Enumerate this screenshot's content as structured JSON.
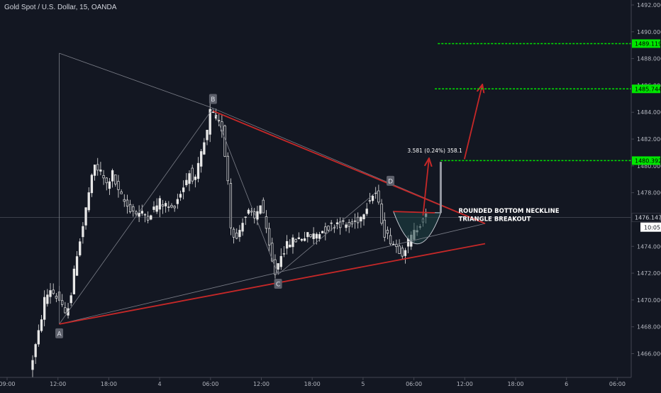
{
  "chart_data": {
    "type": "candlestick",
    "title": "Gold Spot / U.S. Dollar, 15, OANDA",
    "xlabel": "",
    "ylabel": "",
    "ylim": [
      1464.7,
      1492.4
    ],
    "grid": false,
    "colors": {
      "background": "#131722",
      "candle": "#e8e8e8",
      "axis_text": "#b2b5be",
      "axis_line": "#434651",
      "red_line": "#c62828",
      "grey_line": "#7b7e88",
      "target_line": "#00e600",
      "label_box": "#5d606b",
      "cup_fill": "#1e4445"
    },
    "x_ticks": [
      "09:00",
      "12:00",
      "18:00",
      "4",
      "06:00",
      "12:00",
      "18:00",
      "5",
      "06:00",
      "12:00",
      "18:00",
      "6",
      "06:00"
    ],
    "y_ticks": [
      "1466.000",
      "1468.000",
      "1470.000",
      "1472.000",
      "1474.000",
      "1476.000",
      "1478.000",
      "1480.000",
      "1482.000",
      "1484.000",
      "1486.000",
      "1488.000",
      "1490.000",
      "1492.000"
    ],
    "last_price": {
      "value": "1476.147",
      "countdown": "10:05"
    },
    "price_path": [
      {
        "x": 0,
        "y": 1464.7
      },
      {
        "x": 3,
        "y": 1467.5
      },
      {
        "x": 5,
        "y": 1470.0
      },
      {
        "x": 7,
        "y": 1470.8
      },
      {
        "x": 10,
        "y": 1470.0
      },
      {
        "x": 12,
        "y": 1468.8
      },
      {
        "x": 14,
        "y": 1470.5
      },
      {
        "x": 16,
        "y": 1473.5
      },
      {
        "x": 18,
        "y": 1475.5
      },
      {
        "x": 20,
        "y": 1478.0
      },
      {
        "x": 22,
        "y": 1480.0
      },
      {
        "x": 24,
        "y": 1479.5
      },
      {
        "x": 26,
        "y": 1478.6
      },
      {
        "x": 28,
        "y": 1479.4
      },
      {
        "x": 30,
        "y": 1478.0
      },
      {
        "x": 33,
        "y": 1477.0
      },
      {
        "x": 36,
        "y": 1476.5
      },
      {
        "x": 40,
        "y": 1476.3
      },
      {
        "x": 44,
        "y": 1477.3
      },
      {
        "x": 48,
        "y": 1476.8
      },
      {
        "x": 51,
        "y": 1478.0
      },
      {
        "x": 54,
        "y": 1479.5
      },
      {
        "x": 56,
        "y": 1478.9
      },
      {
        "x": 58,
        "y": 1480.8
      },
      {
        "x": 60,
        "y": 1482.5
      },
      {
        "x": 61,
        "y": 1484.0
      },
      {
        "x": 63,
        "y": 1483.5
      },
      {
        "x": 65,
        "y": 1482.8
      },
      {
        "x": 67,
        "y": 1479.0
      },
      {
        "x": 68,
        "y": 1475.5
      },
      {
        "x": 70,
        "y": 1474.5
      },
      {
        "x": 72,
        "y": 1476.0
      },
      {
        "x": 74,
        "y": 1476.5
      },
      {
        "x": 76,
        "y": 1476.0
      },
      {
        "x": 78,
        "y": 1477.2
      },
      {
        "x": 79,
        "y": 1476.5
      },
      {
        "x": 80,
        "y": 1475.0
      },
      {
        "x": 82,
        "y": 1472.8
      },
      {
        "x": 83,
        "y": 1472.0
      },
      {
        "x": 85,
        "y": 1473.5
      },
      {
        "x": 88,
        "y": 1474.3
      },
      {
        "x": 92,
        "y": 1474.7
      },
      {
        "x": 96,
        "y": 1474.8
      },
      {
        "x": 100,
        "y": 1475.3
      },
      {
        "x": 104,
        "y": 1475.8
      },
      {
        "x": 108,
        "y": 1475.5
      },
      {
        "x": 112,
        "y": 1476.2
      },
      {
        "x": 115,
        "y": 1477.6
      },
      {
        "x": 117,
        "y": 1478.0
      },
      {
        "x": 118,
        "y": 1477.0
      },
      {
        "x": 120,
        "y": 1475.0
      },
      {
        "x": 122,
        "y": 1474.5
      },
      {
        "x": 124,
        "y": 1474.0
      },
      {
        "x": 126,
        "y": 1473.6
      },
      {
        "x": 128,
        "y": 1474.3
      },
      {
        "x": 130,
        "y": 1475.0
      },
      {
        "x": 132,
        "y": 1475.8
      },
      {
        "x": 134,
        "y": 1476.2
      }
    ],
    "candle_count": 134,
    "annotations": [
      {
        "type": "trendline",
        "color": "grey",
        "from": {
          "x": 9,
          "y": 1488.4
        },
        "to": {
          "x": 61,
          "y": 1484.3
        }
      },
      {
        "type": "trendline",
        "color": "grey",
        "from": {
          "x": 9,
          "y": 1488.4
        },
        "to": {
          "x": 9,
          "y": 1468.2
        }
      },
      {
        "type": "trendline",
        "color": "grey",
        "from": {
          "x": 9,
          "y": 1468.2
        },
        "to": {
          "x": 61,
          "y": 1484.3
        }
      },
      {
        "type": "trendline",
        "color": "grey",
        "from": {
          "x": 61,
          "y": 1484.3
        },
        "to": {
          "x": 83,
          "y": 1471.9
        }
      },
      {
        "type": "trendline",
        "color": "grey",
        "from": {
          "x": 83,
          "y": 1471.9
        },
        "to": {
          "x": 117,
          "y": 1478.2
        }
      },
      {
        "type": "trendline",
        "color": "grey",
        "from": {
          "x": 9,
          "y": 1468.2
        },
        "to": {
          "x": 153,
          "y": 1475.7
        }
      },
      {
        "type": "trendline",
        "color": "grey",
        "from": {
          "x": 61,
          "y": 1484.3
        },
        "to": {
          "x": 153,
          "y": 1475.7
        }
      },
      {
        "type": "trendline",
        "color": "red",
        "from": {
          "x": 61,
          "y": 1484.1
        },
        "to": {
          "x": 153,
          "y": 1475.7
        }
      },
      {
        "type": "trendline",
        "color": "red",
        "from": {
          "x": 9,
          "y": 1468.2
        },
        "to": {
          "x": 153,
          "y": 1474.2
        }
      },
      {
        "type": "trendline",
        "color": "red",
        "from": {
          "x": 122,
          "y": 1476.6
        },
        "to": {
          "x": 136,
          "y": 1476.5
        }
      },
      {
        "type": "arrow",
        "color": "red",
        "from": {
          "x": 132,
          "y": 1476.3
        },
        "to": {
          "x": 134,
          "y": 1480.5
        }
      },
      {
        "type": "arrow",
        "color": "red",
        "from": {
          "x": 146,
          "y": 1480.5
        },
        "to": {
          "x": 152,
          "y": 1486.0
        }
      },
      {
        "type": "range",
        "color": "grey",
        "x": 138,
        "from": 1476.5,
        "to": 1480.3
      }
    ],
    "point_labels": [
      {
        "text": "A",
        "x": 9,
        "y": 1468.2,
        "place": "below"
      },
      {
        "text": "B",
        "x": 61,
        "y": 1484.3,
        "place": "above"
      },
      {
        "text": "C",
        "x": 83,
        "y": 1471.9,
        "place": "below"
      },
      {
        "text": "D",
        "x": 121,
        "y": 1478.2,
        "place": "above"
      }
    ],
    "targets": [
      {
        "price": 1480.392,
        "label": "1480.392",
        "x_start": 138
      },
      {
        "price": 1485.744,
        "label": "1485.744",
        "x_start": 136
      },
      {
        "price": 1489.119,
        "label": "1489.119",
        "x_start": 137
      }
    ],
    "cup": {
      "left": {
        "x": 122,
        "y": 1476.6
      },
      "bottom": {
        "x": 130,
        "y": 1473.2
      },
      "right": {
        "x": 138,
        "y": 1476.5
      }
    },
    "texts": [
      {
        "text": "3.581 (0.24%) 358.1",
        "x": 136,
        "y": 1481.0,
        "kind": "measure"
      },
      {
        "text": "ROUNDED BOTTOM NECKLINE",
        "x": 144,
        "y": 1476.5,
        "kind": "note"
      },
      {
        "text": "TRIANGLE BREAKOUT",
        "x": 144,
        "y": 1475.9,
        "kind": "note"
      }
    ]
  }
}
